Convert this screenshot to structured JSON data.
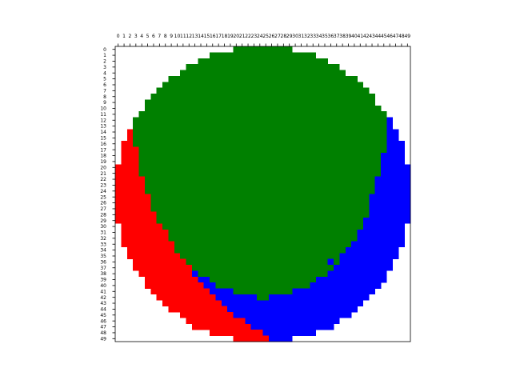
{
  "chart_data": {
    "type": "heatmap",
    "title": "",
    "xlabel": "",
    "ylabel": "",
    "x_axis_position": "top",
    "grid": false,
    "n_cols": 50,
    "n_rows": 50,
    "x_tick_labels": [
      "0",
      "1",
      "2",
      "3",
      "4",
      "5",
      "6",
      "7",
      "8",
      "9",
      "10",
      "11",
      "12",
      "13",
      "14",
      "15",
      "16",
      "17",
      "18",
      "19",
      "20",
      "21",
      "22",
      "23",
      "24",
      "25",
      "26",
      "27",
      "28",
      "29",
      "30",
      "31",
      "32",
      "33",
      "34",
      "35",
      "36",
      "37",
      "38",
      "39",
      "40",
      "41",
      "42",
      "43",
      "44",
      "45",
      "46",
      "47",
      "48",
      "49"
    ],
    "y_tick_labels": [
      "0",
      "1",
      "2",
      "3",
      "4",
      "5",
      "6",
      "7",
      "8",
      "9",
      "10",
      "11",
      "12",
      "13",
      "14",
      "15",
      "16",
      "17",
      "18",
      "19",
      "20",
      "21",
      "22",
      "23",
      "24",
      "25",
      "26",
      "27",
      "28",
      "29",
      "30",
      "31",
      "32",
      "33",
      "34",
      "35",
      "36",
      "37",
      "38",
      "39",
      "40",
      "41",
      "42",
      "43",
      "44",
      "45",
      "46",
      "47",
      "48",
      "49"
    ],
    "categories": [
      {
        "code": "G",
        "name": "green",
        "color": "#008000"
      },
      {
        "code": "R",
        "name": "red",
        "color": "#ff0000"
      },
      {
        "code": "B",
        "name": "blue",
        "color": "#0000ff"
      }
    ],
    "row_segments": [
      [
        [
          20,
          30,
          "G"
        ]
      ],
      [
        [
          16,
          34,
          "G"
        ]
      ],
      [
        [
          14,
          36,
          "G"
        ]
      ],
      [
        [
          12,
          38,
          "G"
        ]
      ],
      [
        [
          11,
          39,
          "G"
        ]
      ],
      [
        [
          9,
          41,
          "G"
        ]
      ],
      [
        [
          8,
          42,
          "G"
        ]
      ],
      [
        [
          7,
          43,
          "G"
        ]
      ],
      [
        [
          6,
          44,
          "G"
        ]
      ],
      [
        [
          5,
          44,
          "G"
        ]
      ],
      [
        [
          5,
          45,
          "G"
        ]
      ],
      [
        [
          4,
          46,
          "G"
        ]
      ],
      [
        [
          3,
          46,
          "G"
        ],
        [
          46,
          47,
          "B"
        ]
      ],
      [
        [
          3,
          46,
          "G"
        ],
        [
          46,
          47,
          "B"
        ]
      ],
      [
        [
          2,
          3,
          "R"
        ],
        [
          3,
          46,
          "G"
        ],
        [
          46,
          48,
          "B"
        ]
      ],
      [
        [
          2,
          3,
          "R"
        ],
        [
          3,
          46,
          "G"
        ],
        [
          46,
          48,
          "B"
        ]
      ],
      [
        [
          1,
          3,
          "R"
        ],
        [
          3,
          46,
          "G"
        ],
        [
          46,
          49,
          "B"
        ]
      ],
      [
        [
          1,
          4,
          "R"
        ],
        [
          4,
          46,
          "G"
        ],
        [
          46,
          49,
          "B"
        ]
      ],
      [
        [
          1,
          4,
          "R"
        ],
        [
          4,
          45,
          "G"
        ],
        [
          45,
          49,
          "B"
        ]
      ],
      [
        [
          1,
          4,
          "R"
        ],
        [
          4,
          45,
          "G"
        ],
        [
          45,
          49,
          "B"
        ]
      ],
      [
        [
          0,
          4,
          "R"
        ],
        [
          4,
          45,
          "G"
        ],
        [
          45,
          50,
          "B"
        ]
      ],
      [
        [
          0,
          4,
          "R"
        ],
        [
          4,
          45,
          "G"
        ],
        [
          45,
          50,
          "B"
        ]
      ],
      [
        [
          0,
          5,
          "R"
        ],
        [
          5,
          44,
          "G"
        ],
        [
          44,
          50,
          "B"
        ]
      ],
      [
        [
          0,
          5,
          "R"
        ],
        [
          5,
          44,
          "G"
        ],
        [
          44,
          50,
          "B"
        ]
      ],
      [
        [
          0,
          5,
          "R"
        ],
        [
          5,
          44,
          "G"
        ],
        [
          44,
          50,
          "B"
        ]
      ],
      [
        [
          0,
          6,
          "R"
        ],
        [
          6,
          43,
          "G"
        ],
        [
          43,
          50,
          "B"
        ]
      ],
      [
        [
          0,
          6,
          "R"
        ],
        [
          6,
          43,
          "G"
        ],
        [
          43,
          50,
          "B"
        ]
      ],
      [
        [
          0,
          6,
          "R"
        ],
        [
          6,
          43,
          "G"
        ],
        [
          43,
          50,
          "B"
        ]
      ],
      [
        [
          0,
          7,
          "R"
        ],
        [
          7,
          43,
          "G"
        ],
        [
          43,
          50,
          "B"
        ]
      ],
      [
        [
          0,
          7,
          "R"
        ],
        [
          7,
          42,
          "G"
        ],
        [
          42,
          50,
          "B"
        ]
      ],
      [
        [
          1,
          8,
          "R"
        ],
        [
          8,
          42,
          "G"
        ],
        [
          42,
          49,
          "B"
        ]
      ],
      [
        [
          1,
          9,
          "R"
        ],
        [
          9,
          41,
          "G"
        ],
        [
          41,
          49,
          "B"
        ]
      ],
      [
        [
          1,
          9,
          "R"
        ],
        [
          9,
          41,
          "G"
        ],
        [
          41,
          49,
          "B"
        ]
      ],
      [
        [
          1,
          10,
          "R"
        ],
        [
          10,
          40,
          "G"
        ],
        [
          40,
          49,
          "B"
        ]
      ],
      [
        [
          2,
          10,
          "R"
        ],
        [
          10,
          39,
          "G"
        ],
        [
          39,
          48,
          "B"
        ]
      ],
      [
        [
          2,
          11,
          "R"
        ],
        [
          11,
          38,
          "G"
        ],
        [
          38,
          48,
          "B"
        ]
      ],
      [
        [
          3,
          12,
          "R"
        ],
        [
          12,
          36,
          "G"
        ],
        [
          36,
          37,
          "B"
        ],
        [
          37,
          38,
          "G"
        ],
        [
          38,
          47,
          "B"
        ]
      ],
      [
        [
          3,
          13,
          "R"
        ],
        [
          13,
          37,
          "G"
        ],
        [
          37,
          47,
          "B"
        ]
      ],
      [
        [
          4,
          13,
          "R"
        ],
        [
          13,
          14,
          "B"
        ],
        [
          14,
          36,
          "G"
        ],
        [
          36,
          46,
          "B"
        ]
      ],
      [
        [
          5,
          14,
          "R"
        ],
        [
          14,
          16,
          "B"
        ],
        [
          16,
          34,
          "G"
        ],
        [
          34,
          46,
          "B"
        ]
      ],
      [
        [
          5,
          15,
          "R"
        ],
        [
          15,
          17,
          "B"
        ],
        [
          17,
          33,
          "G"
        ],
        [
          33,
          45,
          "B"
        ]
      ],
      [
        [
          6,
          16,
          "R"
        ],
        [
          16,
          20,
          "B"
        ],
        [
          20,
          30,
          "G"
        ],
        [
          30,
          44,
          "B"
        ]
      ],
      [
        [
          7,
          17,
          "R"
        ],
        [
          17,
          24,
          "B"
        ],
        [
          24,
          26,
          "G"
        ],
        [
          26,
          43,
          "B"
        ]
      ],
      [
        [
          8,
          18,
          "R"
        ],
        [
          18,
          42,
          "B"
        ]
      ],
      [
        [
          9,
          19,
          "R"
        ],
        [
          19,
          41,
          "B"
        ]
      ],
      [
        [
          11,
          20,
          "R"
        ],
        [
          20,
          40,
          "B"
        ]
      ],
      [
        [
          12,
          22,
          "R"
        ],
        [
          22,
          38,
          "B"
        ]
      ],
      [
        [
          13,
          23,
          "R"
        ],
        [
          23,
          37,
          "B"
        ]
      ],
      [
        [
          16,
          25,
          "R"
        ],
        [
          25,
          34,
          "B"
        ]
      ],
      [
        [
          20,
          26,
          "R"
        ],
        [
          26,
          30,
          "B"
        ]
      ]
    ]
  }
}
